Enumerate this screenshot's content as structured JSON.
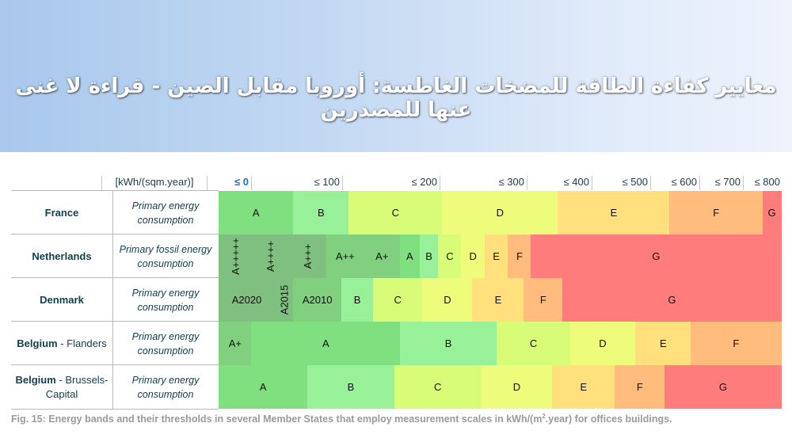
{
  "banner": {
    "title": "معايير كفاءة الطاقة للمضخات الغاطسة: أوروبا مقابل الصين - قراءة لا غنى عنها للمصدرين"
  },
  "caption": {
    "text_before": "Fig. 15: Energy bands and their thresholds in several Member States that employ measurement scales in kWh/(m",
    "sup": "2",
    "text_after": ".year) for offices buildings."
  },
  "colors": {
    "A_dark": "#7fbf7f",
    "A_mid": "#80d080",
    "A": "#80e080",
    "B": "#98f098",
    "C": "#d8fc78",
    "D": "#eefc7c",
    "E": "#ffe07c",
    "F": "#ffbc7c",
    "G": "#ff7c7c"
  },
  "chart_data": {
    "type": "table",
    "title": "Energy bands and their thresholds in several Member States (kWh/(sqm.year)), offices buildings",
    "unit_label": "[kWh/(sqm.year)]",
    "axis_ticks": [
      "≤ 0",
      "≤ 100",
      "≤ 200",
      "≤ 300",
      "≤ 400",
      "≤ 500",
      "≤ 600",
      "≤ 700",
      "≤ 800"
    ],
    "axis_tick_values": [
      0,
      100,
      200,
      300,
      400,
      500,
      600,
      700,
      800
    ],
    "rows": [
      {
        "country": "France",
        "region": "",
        "metric": "Primary energy consumption",
        "bands": [
          {
            "label": "A",
            "from": 0,
            "to": 80,
            "color": "A"
          },
          {
            "label": "B",
            "from": 80,
            "to": 140,
            "color": "B"
          },
          {
            "label": "C",
            "from": 140,
            "to": 240,
            "color": "C"
          },
          {
            "label": "D",
            "from": 240,
            "to": 365,
            "color": "D"
          },
          {
            "label": "E",
            "from": 365,
            "to": 485,
            "color": "E"
          },
          {
            "label": "F",
            "from": 485,
            "to": 585,
            "color": "F"
          },
          {
            "label": "G",
            "from": 585,
            "to": 605,
            "color": "G"
          }
        ]
      },
      {
        "country": "Netherlands",
        "region": "",
        "metric": "Primary fossil energy consumption",
        "bands": [
          {
            "label": "A+++++",
            "from": 0,
            "to": 36,
            "color": "A_dark",
            "vertical": true
          },
          {
            "label": "A++++",
            "from": 36,
            "to": 76,
            "color": "A_dark",
            "vertical": true
          },
          {
            "label": "A+++",
            "from": 76,
            "to": 116,
            "color": "A_dark",
            "vertical": true
          },
          {
            "label": "A++",
            "from": 116,
            "to": 156,
            "color": "A_mid"
          },
          {
            "label": "A+",
            "from": 156,
            "to": 195,
            "color": "A_mid"
          },
          {
            "label": "A",
            "from": 195,
            "to": 216,
            "color": "A"
          },
          {
            "label": "B",
            "from": 216,
            "to": 236,
            "color": "B"
          },
          {
            "label": "C",
            "from": 236,
            "to": 261,
            "color": "C"
          },
          {
            "label": "D",
            "from": 261,
            "to": 286,
            "color": "D"
          },
          {
            "label": "E",
            "from": 286,
            "to": 311,
            "color": "E"
          },
          {
            "label": "F",
            "from": 311,
            "to": 336,
            "color": "F"
          },
          {
            "label": "G",
            "from": 336,
            "to": 605,
            "color": "G"
          }
        ]
      },
      {
        "country": "Denmark",
        "region": "",
        "metric": "Primary energy consumption",
        "bands": [
          {
            "label": "A2020",
            "from": 0,
            "to": 60,
            "color": "A_dark"
          },
          {
            "label": "A2015",
            "from": 60,
            "to": 80,
            "color": "A_dark",
            "vertical": true
          },
          {
            "label": "A2010",
            "from": 80,
            "to": 132,
            "color": "A_mid"
          },
          {
            "label": "B",
            "from": 132,
            "to": 166,
            "color": "B"
          },
          {
            "label": "C",
            "from": 166,
            "to": 219,
            "color": "C"
          },
          {
            "label": "D",
            "from": 219,
            "to": 273,
            "color": "D"
          },
          {
            "label": "E",
            "from": 273,
            "to": 328,
            "color": "E"
          },
          {
            "label": "F",
            "from": 328,
            "to": 370,
            "color": "F"
          },
          {
            "label": "G",
            "from": 370,
            "to": 605,
            "color": "G"
          }
        ]
      },
      {
        "country": "Belgium",
        "region": "Flanders",
        "metric": "Primary energy consumption",
        "bands": [
          {
            "label": "A+",
            "from": 0,
            "to": 35,
            "color": "A_mid"
          },
          {
            "label": "A",
            "from": 35,
            "to": 195,
            "color": "A"
          },
          {
            "label": "B",
            "from": 195,
            "to": 299,
            "color": "B"
          },
          {
            "label": "C",
            "from": 299,
            "to": 378,
            "color": "C"
          },
          {
            "label": "D",
            "from": 378,
            "to": 448,
            "color": "D"
          },
          {
            "label": "E",
            "from": 448,
            "to": 508,
            "color": "E"
          },
          {
            "label": "F",
            "from": 508,
            "to": 605,
            "color": "F"
          }
        ]
      },
      {
        "country": "Belgium",
        "region": "Brussels-Capital",
        "metric": "Primary energy consumption",
        "bands": [
          {
            "label": "A",
            "from": 0,
            "to": 95,
            "color": "A"
          },
          {
            "label": "B",
            "from": 95,
            "to": 189,
            "color": "B"
          },
          {
            "label": "C",
            "from": 189,
            "to": 282,
            "color": "C"
          },
          {
            "label": "D",
            "from": 282,
            "to": 359,
            "color": "D"
          },
          {
            "label": "E",
            "from": 359,
            "to": 426,
            "color": "E"
          },
          {
            "label": "F",
            "from": 426,
            "to": 480,
            "color": "F"
          },
          {
            "label": "G",
            "from": 480,
            "to": 605,
            "color": "G"
          }
        ]
      }
    ],
    "legend": [],
    "grid": false
  },
  "table": {
    "unit_label": "[kWh/(sqm.year)]",
    "ticks": [
      "≤ 0",
      "≤ 100",
      "≤ 200",
      "≤ 300",
      "≤ 400",
      "≤ 500",
      "≤ 600",
      "≤ 700",
      "≤ 800"
    ],
    "rows": [
      {
        "country": "France",
        "region": "",
        "metric_line1": "Primary energy",
        "metric_line2": "consumption"
      },
      {
        "country": "Netherlands",
        "region": "",
        "metric_line1": "Primary fossil energy",
        "metric_line2": "consumption"
      },
      {
        "country": "Denmark",
        "region": "",
        "metric_line1": "Primary energy",
        "metric_line2": "consumption"
      },
      {
        "country": "Belgium",
        "region": " - Flanders",
        "metric_line1": "Primary energy",
        "metric_line2": "consumption"
      },
      {
        "country": "Belgium",
        "region": " - Brussels-",
        "region2": "Capital",
        "metric_line1": "Primary energy",
        "metric_line2": "consumption"
      }
    ]
  }
}
